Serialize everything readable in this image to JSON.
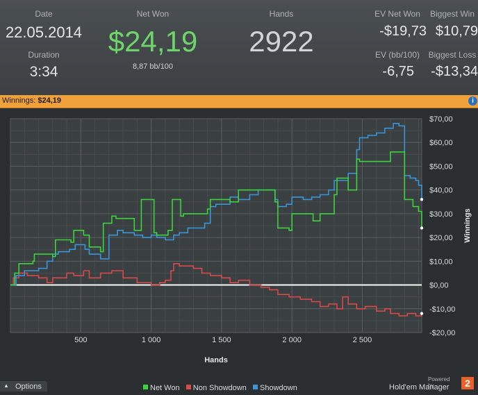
{
  "header": {
    "date_label": "Date",
    "date_value": "22.05.2014",
    "duration_label": "Duration",
    "duration_value": "3:34",
    "netwon_label": "Net Won",
    "netwon_value": "$24,19",
    "netwon_sub": "8,87 bb/100",
    "hands_label": "Hands",
    "hands_value": "2922",
    "ev_net_label": "EV Net Won",
    "ev_net_value": "-$19,73",
    "ev_bb_label": "EV (bb/100)",
    "ev_bb_value": "-6,75",
    "big_win_label": "Biggest Win",
    "big_win_value": "$10,79",
    "big_loss_label": "Biggest Loss",
    "big_loss_value": "-$13,34"
  },
  "banner": {
    "label": "Winnings:",
    "value": "$24,19",
    "info_icon": "info-icon"
  },
  "footer": {
    "options_label": "Options",
    "brand_top": "Powered by",
    "brand_name": "Hold'em Manager",
    "brand_badge": "2"
  },
  "colors": {
    "net_won": "#3cd43c",
    "non_showdown": "#d84a4a",
    "showdown": "#3a95d8",
    "zero_line": "#ffffff",
    "accent": "#f0a13a",
    "netwon_text": "#6fd46a"
  },
  "chart_data": {
    "type": "line",
    "xlabel": "Hands",
    "ylabel": "Winnings",
    "xlim": [
      0,
      2922
    ],
    "ylim": [
      -20,
      70
    ],
    "x_ticks": [
      500,
      1000,
      1500,
      2000,
      2500
    ],
    "x_tick_labels": [
      "500",
      "1 000",
      "1 500",
      "2 000",
      "2 500"
    ],
    "y_ticks": [
      70,
      60,
      50,
      40,
      30,
      20,
      10,
      0,
      -10,
      -20
    ],
    "y_tick_labels": [
      "$70,00",
      "$60,00",
      "$50,00",
      "$40,00",
      "$30,00",
      "$20,00",
      "$10,00",
      "$0,00",
      "-$10,00",
      "-$20,00"
    ],
    "grid": true,
    "legend_position": "bottom",
    "series": [
      {
        "name": "Net Won",
        "color": "#3cd43c",
        "x": [
          0,
          30,
          60,
          160,
          170,
          300,
          320,
          430,
          450,
          520,
          560,
          640,
          660,
          720,
          750,
          880,
          930,
          1020,
          1040,
          1120,
          1150,
          1210,
          1230,
          1400,
          1420,
          1560,
          1620,
          1880,
          1900,
          1980,
          2000,
          2150,
          2200,
          2300,
          2320,
          2400,
          2460,
          2480,
          2700,
          2780,
          2800,
          2860,
          2900,
          2922
        ],
        "y": [
          0,
          5,
          9,
          10,
          13,
          12,
          19,
          18,
          23,
          21,
          16,
          14,
          26,
          29,
          28,
          23,
          36,
          22,
          21,
          23,
          36,
          29,
          30,
          32,
          36,
          35,
          40,
          35,
          24,
          23,
          30,
          27,
          30,
          38,
          45,
          40,
          53,
          52,
          56,
          56,
          36,
          33,
          31,
          24
        ]
      },
      {
        "name": "Non Showdown",
        "color": "#d84a4a",
        "x": [
          0,
          20,
          60,
          120,
          200,
          260,
          300,
          400,
          450,
          520,
          560,
          640,
          720,
          800,
          900,
          1000,
          1060,
          1100,
          1140,
          1160,
          1200,
          1300,
          1360,
          1420,
          1500,
          1560,
          1620,
          1700,
          1780,
          1840,
          1900,
          1980,
          2060,
          2140,
          2200,
          2260,
          2320,
          2360,
          2400,
          2460,
          2520,
          2600,
          2660,
          2700,
          2760,
          2820,
          2880,
          2922
        ],
        "y": [
          0,
          3,
          5,
          4,
          3,
          1,
          3,
          5,
          4,
          6,
          3,
          5,
          6,
          3,
          1,
          0,
          1,
          2,
          6,
          9,
          8,
          7,
          5,
          4,
          3,
          1,
          2,
          0,
          -1,
          -2,
          -4,
          -5,
          -6,
          -7,
          -9,
          -8,
          -10,
          -5,
          -8,
          -10,
          -9,
          -11,
          -10,
          -12,
          -13,
          -12,
          -13,
          -12
        ]
      },
      {
        "name": "Showdown",
        "color": "#3a95d8",
        "x": [
          0,
          40,
          100,
          200,
          260,
          300,
          340,
          420,
          460,
          530,
          560,
          640,
          700,
          760,
          800,
          880,
          940,
          1000,
          1040,
          1100,
          1160,
          1200,
          1260,
          1380,
          1420,
          1460,
          1560,
          1620,
          1700,
          1760,
          1880,
          1900,
          1960,
          2000,
          2080,
          2140,
          2200,
          2260,
          2300,
          2400,
          2460,
          2480,
          2540,
          2600,
          2660,
          2720,
          2760,
          2800,
          2840,
          2880,
          2900,
          2922
        ],
        "y": [
          0,
          4,
          6,
          7,
          10,
          13,
          14,
          15,
          17,
          15,
          13,
          11,
          21,
          23,
          22,
          21,
          20,
          21,
          20,
          19,
          21,
          22,
          24,
          26,
          33,
          34,
          37,
          36,
          38,
          40,
          36,
          33,
          34,
          37,
          36,
          37,
          38,
          40,
          44,
          47,
          57,
          62,
          63,
          64,
          66,
          68,
          67,
          46,
          45,
          44,
          42,
          36
        ]
      }
    ],
    "end_markers": true
  }
}
